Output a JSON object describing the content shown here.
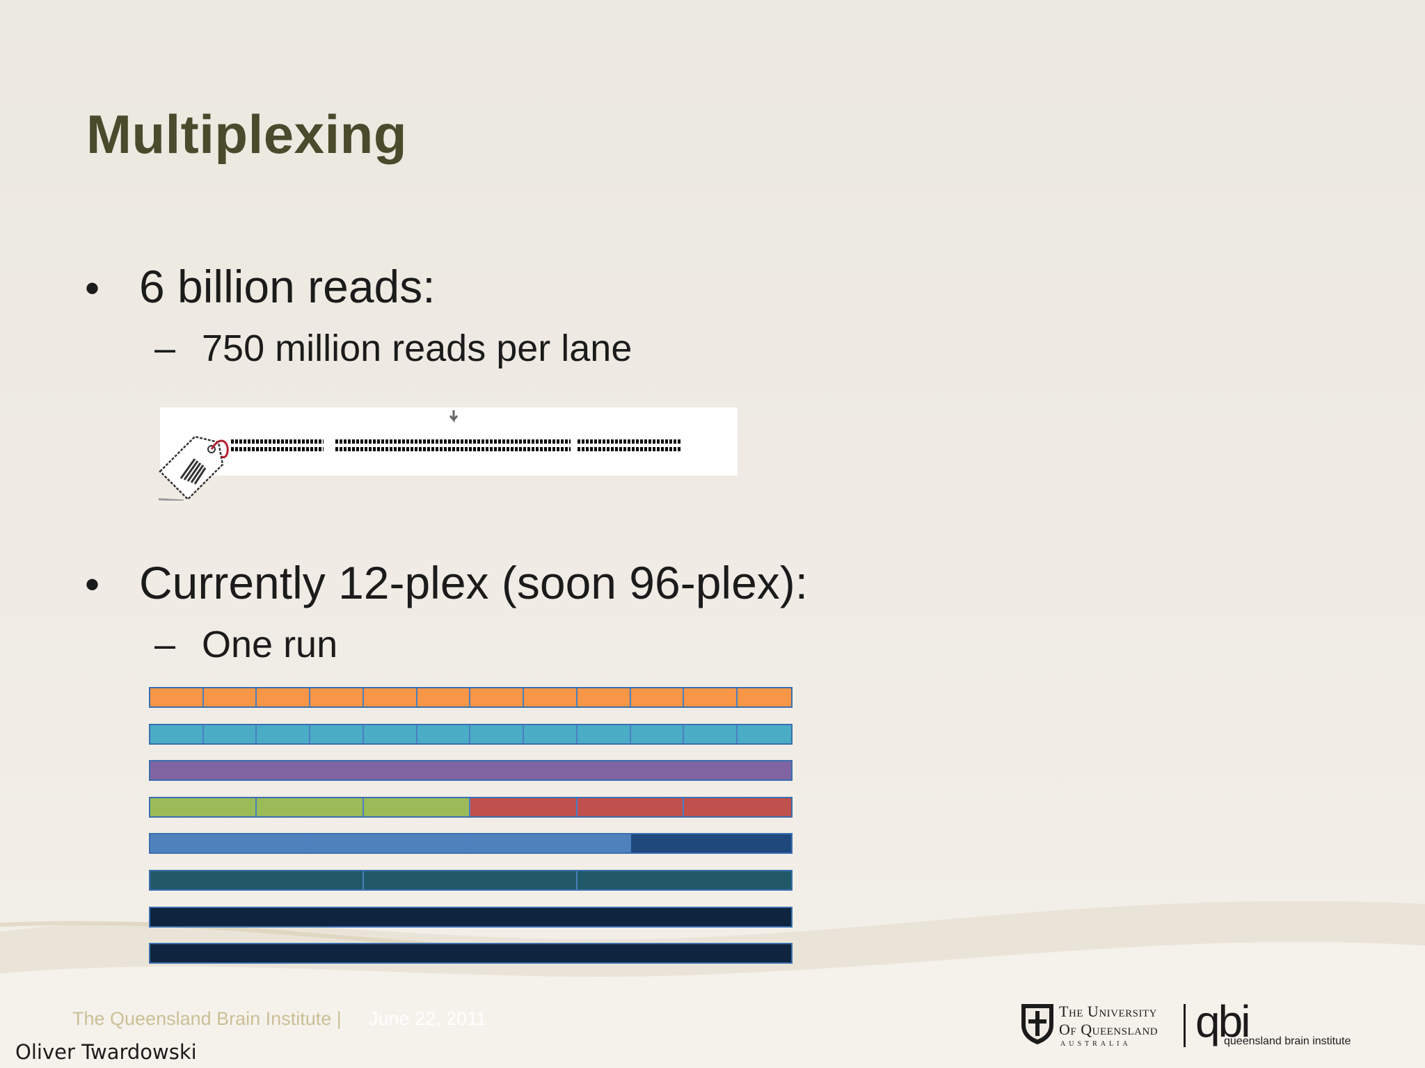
{
  "slide": {
    "title": "Multiplexing",
    "bullets": [
      {
        "marker": "•",
        "text": "6 billion reads:",
        "sub": {
          "marker": "–",
          "text": "750 million reads per lane"
        }
      },
      {
        "marker": "•",
        "text": "Currently 12-plex (soon 96-plex):",
        "sub": {
          "marker": "–",
          "text": "One run"
        }
      }
    ]
  },
  "lanes": [
    {
      "segments": [
        {
          "color": "#f79646"
        },
        {
          "color": "#f79646"
        },
        {
          "color": "#f79646"
        },
        {
          "color": "#f79646"
        },
        {
          "color": "#f79646"
        },
        {
          "color": "#f79646"
        },
        {
          "color": "#f79646"
        },
        {
          "color": "#f79646"
        },
        {
          "color": "#f79646"
        },
        {
          "color": "#f79646"
        },
        {
          "color": "#f79646"
        },
        {
          "color": "#f79646"
        }
      ]
    },
    {
      "segments": [
        {
          "color": "#4bacc6"
        },
        {
          "color": "#4bacc6"
        },
        {
          "color": "#4bacc6"
        },
        {
          "color": "#4bacc6"
        },
        {
          "color": "#4bacc6"
        },
        {
          "color": "#4bacc6"
        },
        {
          "color": "#4bacc6"
        },
        {
          "color": "#4bacc6"
        },
        {
          "color": "#4bacc6"
        },
        {
          "color": "#4bacc6"
        },
        {
          "color": "#4bacc6"
        },
        {
          "color": "#4bacc6"
        }
      ]
    },
    {
      "segments": [
        {
          "color": "#8064a2"
        }
      ]
    },
    {
      "segments": [
        {
          "color": "#9bbb59"
        },
        {
          "color": "#9bbb59"
        },
        {
          "color": "#9bbb59"
        },
        {
          "color": "#c0504d"
        },
        {
          "color": "#c0504d"
        },
        {
          "color": "#c0504d"
        }
      ]
    },
    {
      "segments": [
        {
          "color": "#4f81bd"
        },
        {
          "color": "#4f81bd"
        },
        {
          "color": "#4f81bd"
        },
        {
          "color": "#1f497d"
        }
      ]
    },
    {
      "segments": [
        {
          "color": "#215968"
        },
        {
          "color": "#215968"
        },
        {
          "color": "#215968"
        }
      ]
    },
    {
      "segments": [
        {
          "color": "#0f243e"
        }
      ]
    },
    {
      "segments": [
        {
          "color": "#0f243e"
        }
      ]
    }
  ],
  "footer": {
    "institute": "The Queensland Brain Institute |",
    "date": "June 22, 2011",
    "author": "Oliver Twardowski"
  },
  "logos": {
    "uq_line1": "The University",
    "uq_line2": "Of Queensland",
    "uq_line3": "AUSTRALIA",
    "qbi": "qbi",
    "qbi_sub": "queensland brain institute"
  },
  "colors": {
    "title": "#4a4a2c",
    "background": "#efebe4",
    "lane_border": "#3a6fb0"
  }
}
